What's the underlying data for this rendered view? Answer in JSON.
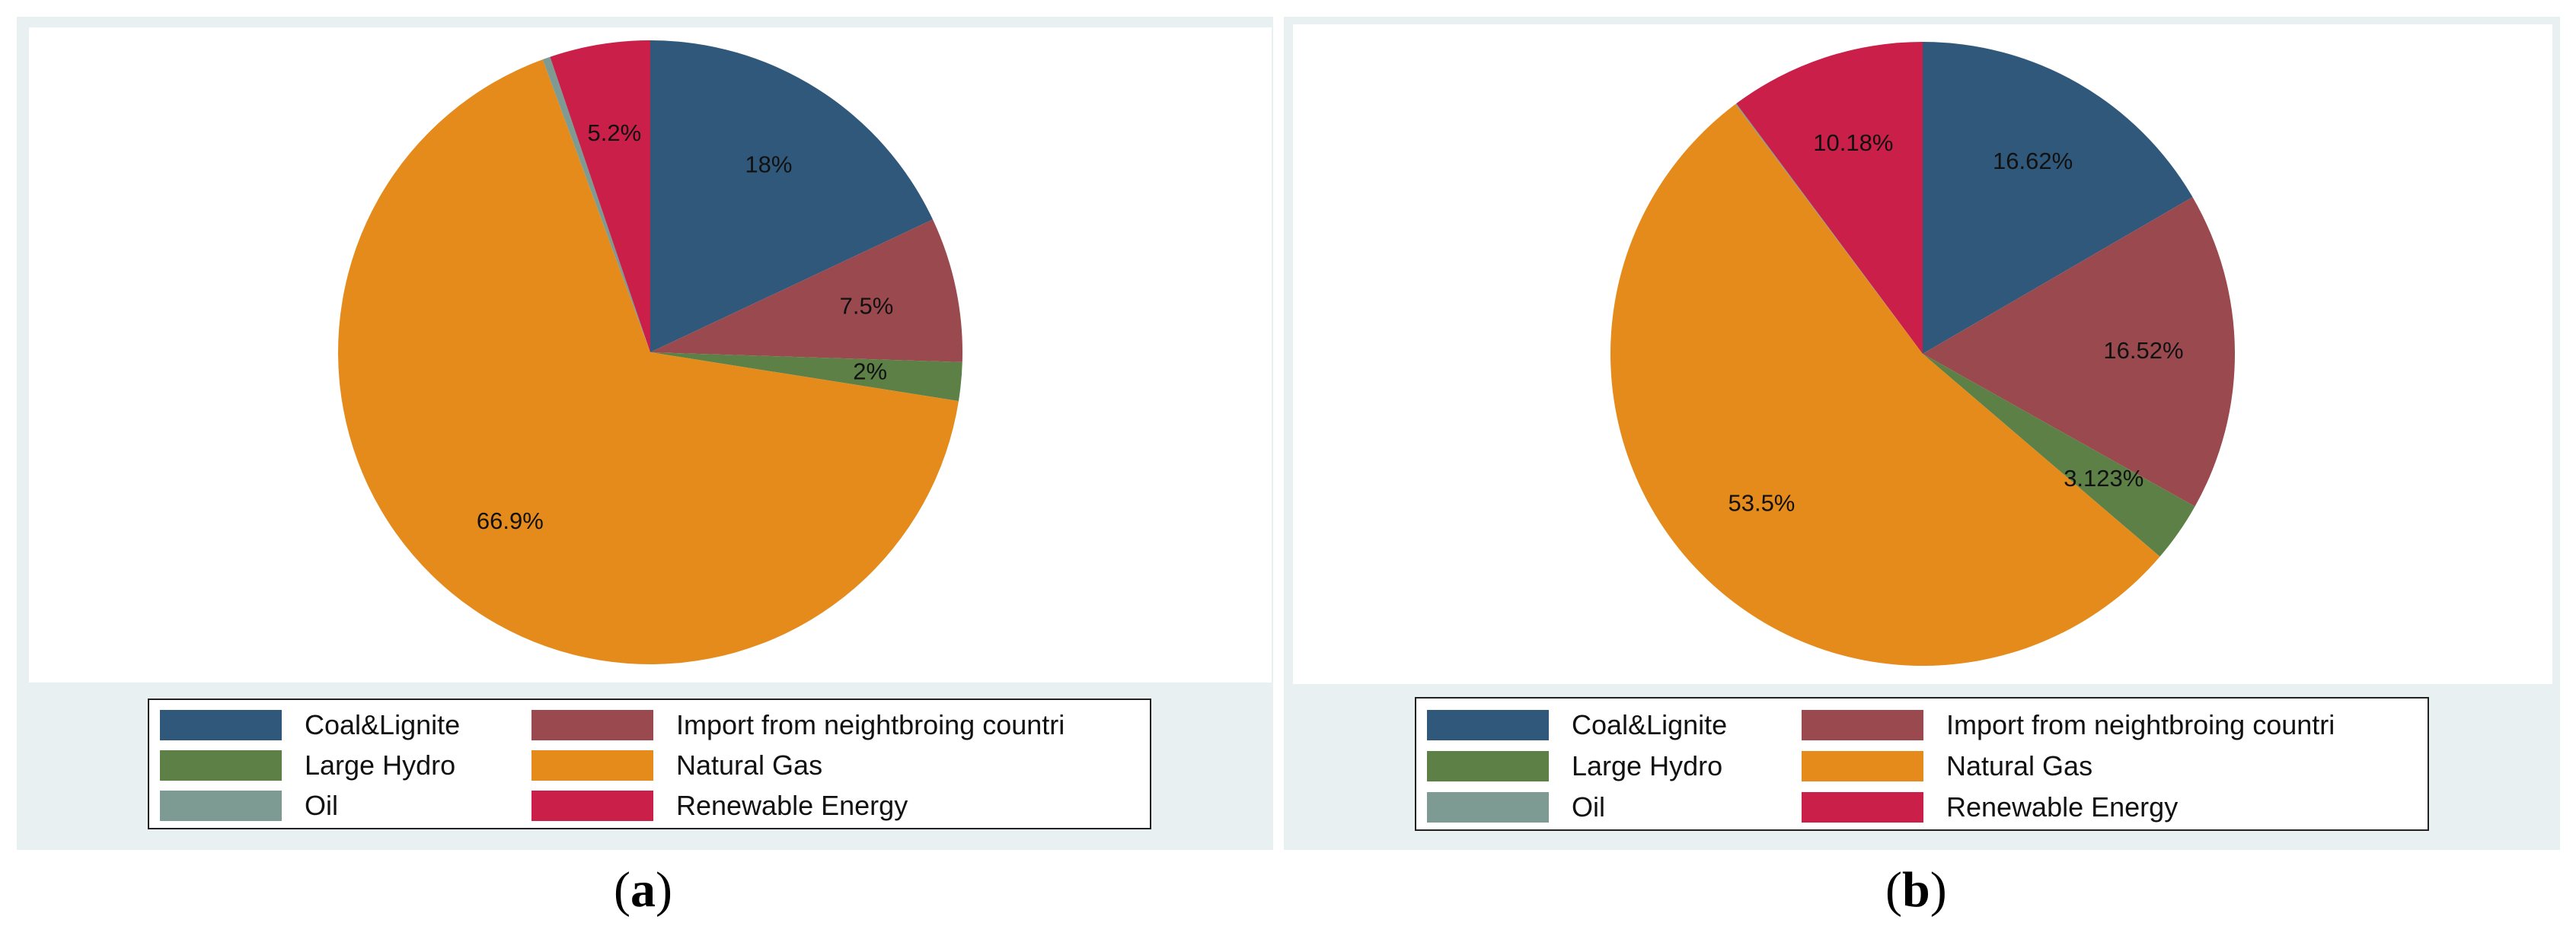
{
  "chart_data": [
    {
      "type": "pie",
      "panel": "a",
      "caption_letter": "a",
      "slices": [
        {
          "name": "Coal&Lignite",
          "value": 18,
          "label": "18%",
          "color": "#30587a"
        },
        {
          "name": "Import from neightbroing countri",
          "value": 7.5,
          "label": "7.5%",
          "color": "#9a4a4f"
        },
        {
          "name": "Large Hydro",
          "value": 2,
          "label": "2%",
          "color": "#5d8046"
        },
        {
          "name": "Natural Gas",
          "value": 66.9,
          "label": "66.9%",
          "color": "#e48b1c"
        },
        {
          "name": "Oil",
          "value": 0.4,
          "label": "",
          "color": "#7e9b93"
        },
        {
          "name": "Renewable Energy",
          "value": 5.2,
          "label": "5.2%",
          "color": "#ca1f48"
        }
      ],
      "legend": [
        {
          "name": "Coal&Lignite",
          "color": "#30587a"
        },
        {
          "name": "Import from neightbroing countri",
          "color": "#9a4a4f"
        },
        {
          "name": "Large Hydro",
          "color": "#5d8046"
        },
        {
          "name": "Natural Gas",
          "color": "#e48b1c"
        },
        {
          "name": "Oil",
          "color": "#7e9b93"
        },
        {
          "name": "Renewable Energy",
          "color": "#ca1f48"
        }
      ]
    },
    {
      "type": "pie",
      "panel": "b",
      "caption_letter": "b",
      "slices": [
        {
          "name": "Coal&Lignite",
          "value": 16.62,
          "label": "16.62%",
          "color": "#30587a"
        },
        {
          "name": "Import from neightbroing countri",
          "value": 16.52,
          "label": "16.52%",
          "color": "#9a4a4f"
        },
        {
          "name": "Large Hydro",
          "value": 3.123,
          "label": "3.123%",
          "color": "#5d8046"
        },
        {
          "name": "Natural Gas",
          "value": 53.5,
          "label": "53.5%",
          "color": "#e48b1c"
        },
        {
          "name": "Oil",
          "value": 0.057,
          "label": "",
          "color": "#7e9b93"
        },
        {
          "name": "Renewable Energy",
          "value": 10.18,
          "label": "10.18%",
          "color": "#ca1f48"
        }
      ],
      "legend": [
        {
          "name": "Coal&Lignite",
          "color": "#30587a"
        },
        {
          "name": "Import from neightbroing countri",
          "color": "#9a4a4f"
        },
        {
          "name": "Large Hydro",
          "color": "#5d8046"
        },
        {
          "name": "Natural Gas",
          "color": "#e48b1c"
        },
        {
          "name": "Oil",
          "color": "#7e9b93"
        },
        {
          "name": "Renewable Energy",
          "color": "#ca1f48"
        }
      ]
    }
  ]
}
